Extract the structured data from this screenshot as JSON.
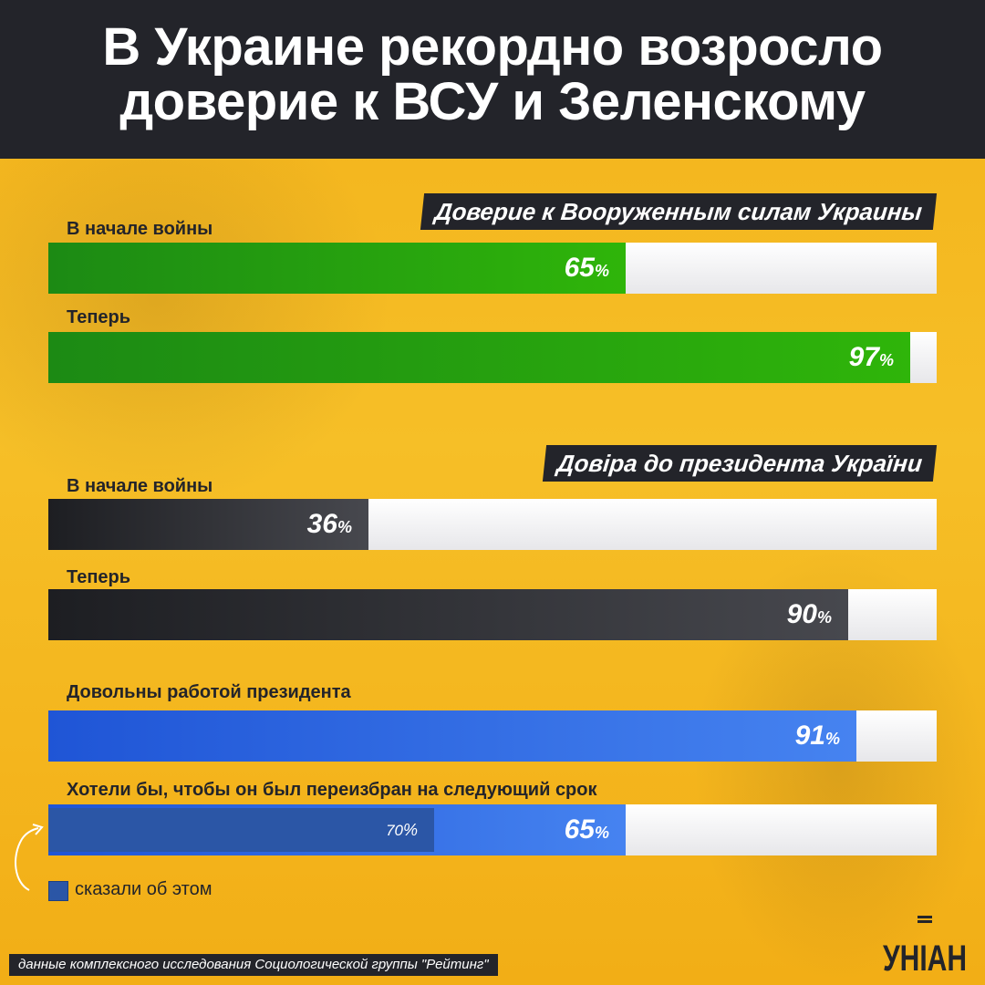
{
  "title_lines": [
    "В Украине рекордно возросло",
    "доверие к ВСУ и Зеленскому"
  ],
  "sections": [
    {
      "heading": "Доверие к Вооруженным силам Украины",
      "rows": [
        {
          "label": "В начале войны",
          "value": 65
        },
        {
          "label": "Теперь",
          "value": 97
        }
      ]
    },
    {
      "heading": "Довіра до президента України",
      "rows": [
        {
          "label": "В начале войны",
          "value": 36
        },
        {
          "label": "Теперь",
          "value": 90
        }
      ]
    },
    {
      "heading": "",
      "rows": [
        {
          "label": "Довольны работой президента",
          "value": 91
        },
        {
          "label": "Хотели бы, чтобы он был переизбран на следующий срок",
          "value": 65,
          "inner_value": 70
        }
      ]
    }
  ],
  "value_suffix": "%",
  "legend": {
    "label": "сказали об этом"
  },
  "source": "данные комплексного исследования Социологической группы \"Рейтинг\"",
  "logo_text": "УНІАН",
  "colors": {
    "green": "#2fb50a",
    "dark": "#23242a",
    "blue": "#3b73e8",
    "blue_inner": "#2b56a6",
    "background": "#f6bf27"
  },
  "chart_data": {
    "type": "bar",
    "orientation": "horizontal",
    "xlim": [
      0,
      100
    ],
    "unit": "%",
    "categories": [
      "В начале войны",
      "Теперь",
      "В начале войны",
      "Теперь",
      "Довольны работой президента",
      "Хотели бы, чтобы он был переизбран на следующий срок"
    ],
    "values": [
      65,
      97,
      36,
      90,
      91,
      65
    ],
    "groups": [
      "Доверие к Вооруженным силам Украины",
      "Довіра до президента України"
    ],
    "secondary": {
      "label": "сказали об этом",
      "category": "Хотели бы, чтобы он был переизбран на следующий срок",
      "value": 70
    }
  }
}
